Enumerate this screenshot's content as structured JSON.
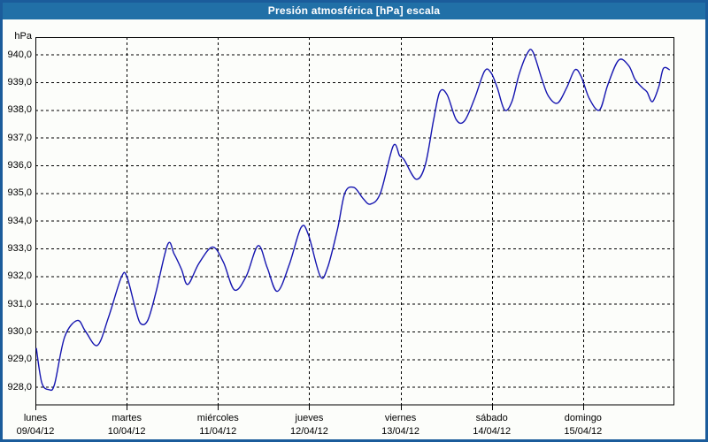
{
  "window": {
    "title": "Presión atmosférica [hPa] escala",
    "title_bar_color": "#2170a7",
    "border_color": "#1b5c9b",
    "background_color": "#fcfdfa"
  },
  "chart_data": {
    "type": "line",
    "title": "Presión atmosférica [hPa] escala",
    "ylabel": "hPa",
    "xlabel": "",
    "grid": true,
    "grid_style": "dashed-black",
    "line_color": "#1515b0",
    "ylim": [
      927.35,
      940.63
    ],
    "xlim_days": [
      0,
      7
    ],
    "y_tick_values": [
      940,
      939,
      938,
      937,
      936,
      935,
      934,
      933,
      932,
      931,
      930,
      929,
      928
    ],
    "y_tick_labels": [
      "940,0",
      "939,0",
      "938,0",
      "937,0",
      "936,0",
      "935,0",
      "934,0",
      "933,0",
      "932,0",
      "931,0",
      "930,0",
      "929,0",
      "928,0"
    ],
    "x_ticks": [
      {
        "day": "lunes",
        "date": "09/04/12"
      },
      {
        "day": "martes",
        "date": "10/04/12"
      },
      {
        "day": "miércoles",
        "date": "11/04/12"
      },
      {
        "day": "jueves",
        "date": "12/04/12"
      },
      {
        "day": "viernes",
        "date": "13/04/12"
      },
      {
        "day": "sábado",
        "date": "14/04/12"
      },
      {
        "day": "domingo",
        "date": "15/04/12"
      }
    ],
    "series": [
      {
        "name": "Presión atmosférica [hPa]",
        "points_days_hpa": [
          [
            0.01,
            929.4
          ],
          [
            0.07,
            928.15
          ],
          [
            0.15,
            927.9
          ],
          [
            0.21,
            928.1
          ],
          [
            0.32,
            929.8
          ],
          [
            0.46,
            930.4
          ],
          [
            0.55,
            930.0
          ],
          [
            0.68,
            929.5
          ],
          [
            0.8,
            930.5
          ],
          [
            0.94,
            931.95
          ],
          [
            1.0,
            932.0
          ],
          [
            1.09,
            930.9
          ],
          [
            1.15,
            930.3
          ],
          [
            1.23,
            930.4
          ],
          [
            1.32,
            931.4
          ],
          [
            1.45,
            933.15
          ],
          [
            1.52,
            932.8
          ],
          [
            1.6,
            932.25
          ],
          [
            1.67,
            931.7
          ],
          [
            1.79,
            932.45
          ],
          [
            1.94,
            933.05
          ],
          [
            2.06,
            932.5
          ],
          [
            2.18,
            931.5
          ],
          [
            2.31,
            932.0
          ],
          [
            2.44,
            933.1
          ],
          [
            2.54,
            932.3
          ],
          [
            2.65,
            931.45
          ],
          [
            2.78,
            932.4
          ],
          [
            2.91,
            933.75
          ],
          [
            2.99,
            933.5
          ],
          [
            3.12,
            932.0
          ],
          [
            3.2,
            932.3
          ],
          [
            3.31,
            933.7
          ],
          [
            3.39,
            935.0
          ],
          [
            3.49,
            935.2
          ],
          [
            3.59,
            934.8
          ],
          [
            3.67,
            934.6
          ],
          [
            3.78,
            935.0
          ],
          [
            3.92,
            936.7
          ],
          [
            3.99,
            936.35
          ],
          [
            4.04,
            936.2
          ],
          [
            4.17,
            935.5
          ],
          [
            4.27,
            936.0
          ],
          [
            4.36,
            937.6
          ],
          [
            4.43,
            938.65
          ],
          [
            4.51,
            938.55
          ],
          [
            4.61,
            937.65
          ],
          [
            4.7,
            937.6
          ],
          [
            4.81,
            938.4
          ],
          [
            4.92,
            939.4
          ],
          [
            4.99,
            939.35
          ],
          [
            5.06,
            938.8
          ],
          [
            5.14,
            938.0
          ],
          [
            5.22,
            938.3
          ],
          [
            5.3,
            939.3
          ],
          [
            5.39,
            940.05
          ],
          [
            5.45,
            940.1
          ],
          [
            5.55,
            939.1
          ],
          [
            5.62,
            938.5
          ],
          [
            5.72,
            938.25
          ],
          [
            5.82,
            938.8
          ],
          [
            5.91,
            939.45
          ],
          [
            5.98,
            939.2
          ],
          [
            6.07,
            938.4
          ],
          [
            6.18,
            938.0
          ],
          [
            6.27,
            938.9
          ],
          [
            6.39,
            939.8
          ],
          [
            6.5,
            939.6
          ],
          [
            6.57,
            939.1
          ],
          [
            6.65,
            938.8
          ],
          [
            6.7,
            938.65
          ],
          [
            6.76,
            938.3
          ],
          [
            6.83,
            938.85
          ],
          [
            6.88,
            939.5
          ],
          [
            6.95,
            939.45
          ]
        ]
      }
    ]
  }
}
